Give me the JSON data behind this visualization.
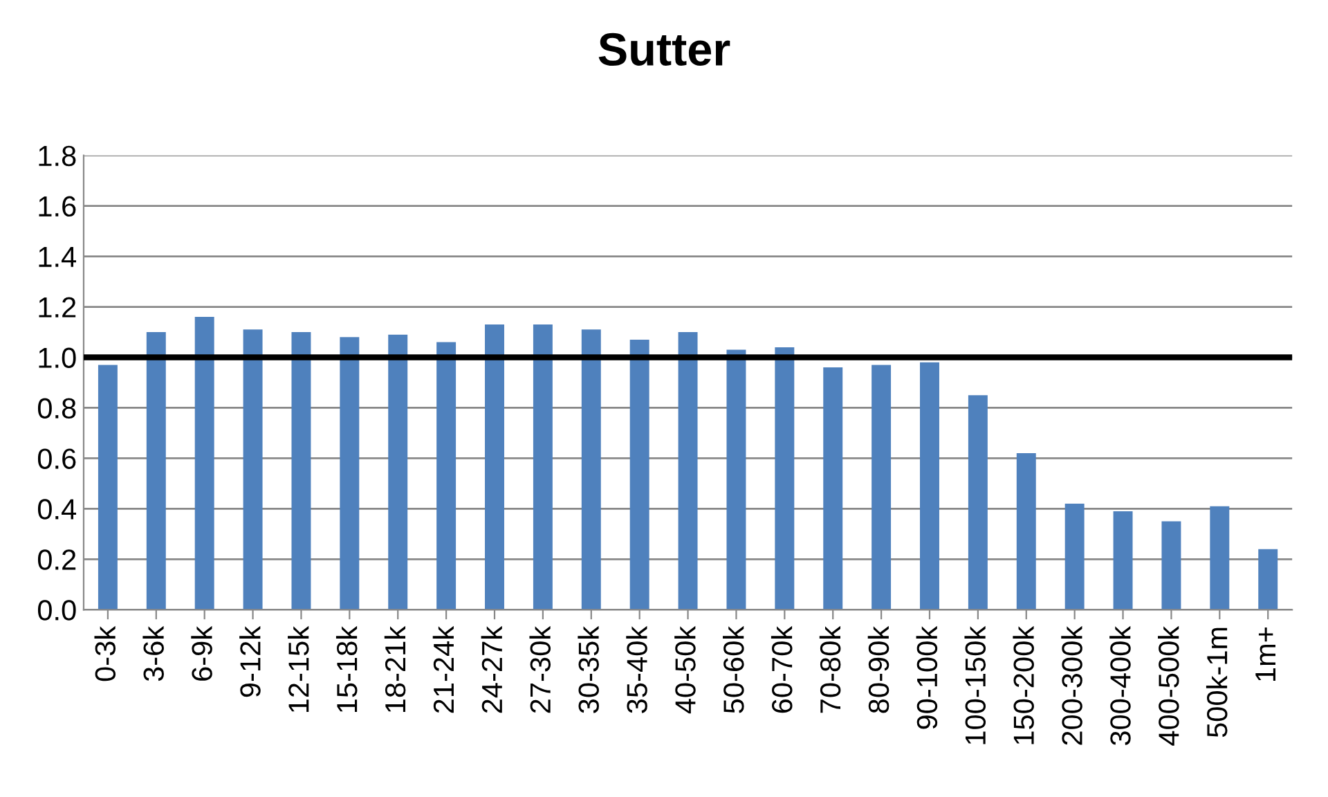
{
  "chart_data": {
    "type": "bar",
    "title": "Sutter",
    "categories": [
      "0-3k",
      "3-6k",
      "6-9k",
      "9-12k",
      "12-15k",
      "15-18k",
      "18-21k",
      "21-24k",
      "24-27k",
      "27-30k",
      "30-35k",
      "35-40k",
      "40-50k",
      "50-60k",
      "60-70k",
      "70-80k",
      "80-90k",
      "90-100k",
      "100-150k",
      "150-200k",
      "200-300k",
      "300-400k",
      "400-500k",
      "500k-1m",
      "1m+"
    ],
    "values": [
      0.97,
      1.1,
      1.16,
      1.11,
      1.1,
      1.08,
      1.09,
      1.06,
      1.13,
      1.13,
      1.11,
      1.07,
      1.1,
      1.03,
      1.04,
      0.96,
      0.97,
      0.98,
      0.85,
      0.62,
      0.42,
      0.39,
      0.35,
      0.41,
      0.24
    ],
    "color": "#4f81bd",
    "ylim": [
      0,
      1.8
    ],
    "yticks": [
      {
        "value": 0,
        "label": "0.0"
      },
      {
        "value": 0.2,
        "label": "0.2"
      },
      {
        "value": 0.4,
        "label": "0.4"
      },
      {
        "value": 0.6,
        "label": "0.6"
      },
      {
        "value": 0.8,
        "label": "0.8"
      },
      {
        "value": 1.0,
        "label": "1.0"
      },
      {
        "value": 1.2,
        "label": "1.2"
      },
      {
        "value": 1.4,
        "label": "1.4"
      },
      {
        "value": 1.6,
        "label": "1.6"
      },
      {
        "value": 1.8,
        "label": "1.8"
      }
    ],
    "grid": "y",
    "ref_lines": [
      {
        "axis": "y",
        "value": 1.0,
        "color": "#000000"
      }
    ]
  }
}
